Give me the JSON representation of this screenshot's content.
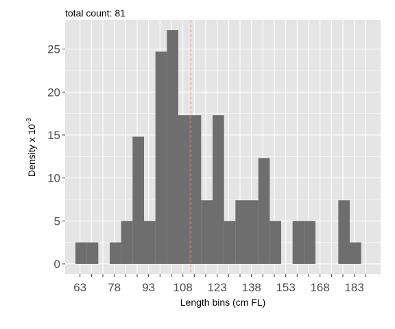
{
  "subtitle": "total count: 81",
  "chart_data": {
    "type": "bar",
    "subtitle": "total count: 81",
    "xlabel": "Length bins (cm FL)",
    "ylabel_main": "Density x 10",
    "ylabel_sup": "-3",
    "bin_width": 5,
    "bin_start": 61,
    "values": [
      2.5,
      2.5,
      0,
      2.5,
      5,
      14.8,
      5,
      24.7,
      27.2,
      17.3,
      17.3,
      7.4,
      17.3,
      5,
      7.4,
      7.4,
      12.3,
      5,
      0,
      5,
      5,
      0,
      0,
      7.4,
      2.5
    ],
    "xlim": [
      56.5,
      194.5
    ],
    "ylim": [
      -1.2,
      28.4
    ],
    "y_ticks": [
      0,
      5,
      10,
      15,
      20,
      25
    ],
    "y_tick_labels": [
      "0",
      "5",
      "10",
      "15",
      "20",
      "25"
    ],
    "x_ticks": [
      63,
      68,
      73,
      78,
      83,
      88,
      93,
      98,
      103,
      108,
      113,
      118,
      123,
      128,
      133,
      138,
      143,
      148,
      153,
      158,
      163,
      168,
      173,
      178,
      183,
      188
    ],
    "x_tick_labels": [
      "63",
      "",
      "",
      "78",
      "",
      "",
      "93",
      "",
      "",
      "108",
      "",
      "",
      "123",
      "",
      "",
      "138",
      "",
      "",
      "153",
      "",
      "",
      "168",
      "",
      "",
      "183",
      ""
    ],
    "vline": {
      "x": 111.5,
      "style": "dashed"
    },
    "grid": true,
    "colors": {
      "panel": "#e5e5e5",
      "grid": "#ffffff",
      "bar": "#6e6e6e",
      "vline": "#e0a030"
    }
  }
}
